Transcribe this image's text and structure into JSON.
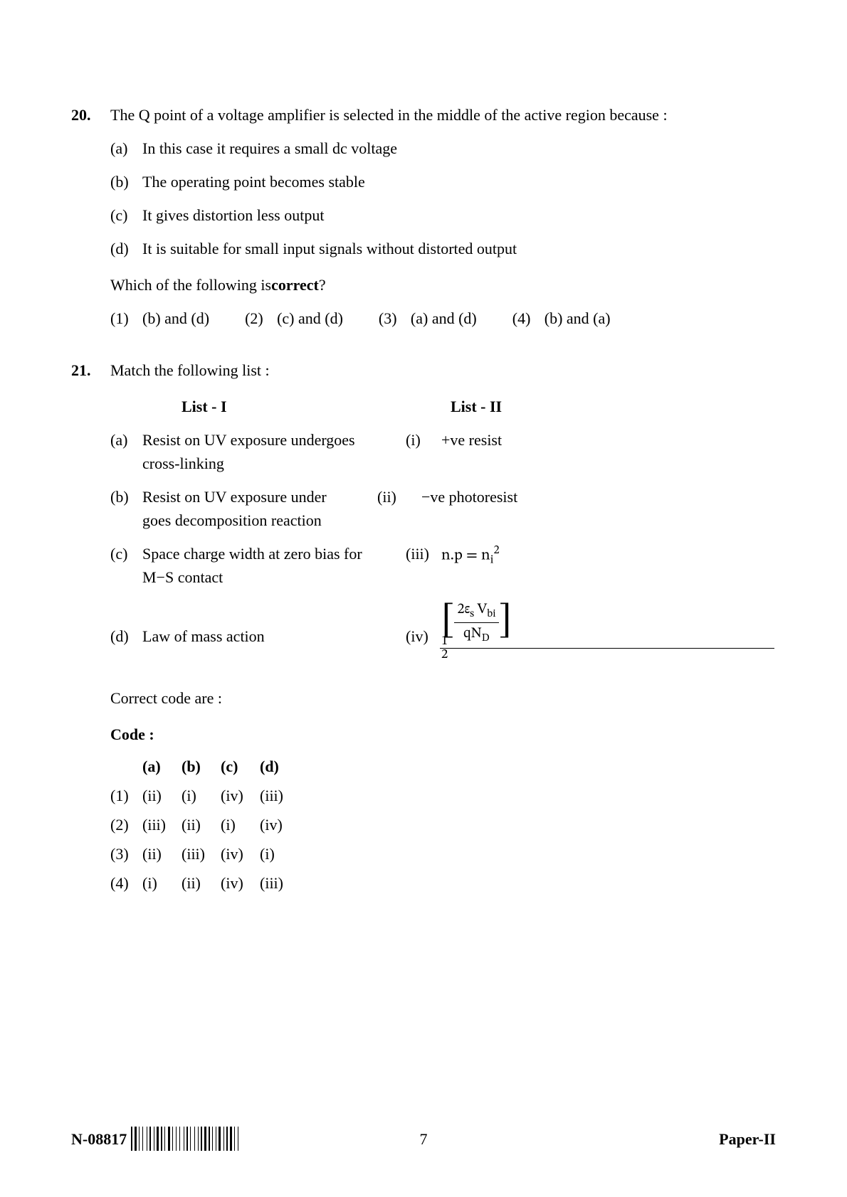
{
  "q20": {
    "number": "20.",
    "stem": "The Q point of a voltage amplifier is selected in the middle of the active region because :",
    "options": [
      {
        "label": "(a)",
        "text": "In this case it requires a small dc voltage"
      },
      {
        "label": "(b)",
        "text": "The operating point becomes stable"
      },
      {
        "label": "(c)",
        "text": "It gives distortion less output"
      },
      {
        "label": "(d)",
        "text": "It is suitable for small input signals without distorted output"
      }
    ],
    "prompt_prefix": "Which of the following is ",
    "prompt_bold": "correct",
    "prompt_suffix": " ?",
    "choices": [
      {
        "label": "(1)",
        "text": "(b) and (d)"
      },
      {
        "label": "(2)",
        "text": "(c) and (d)"
      },
      {
        "label": "(3)",
        "text": "(a) and (d)"
      },
      {
        "label": "(4)",
        "text": "(b) and (a)"
      }
    ]
  },
  "q21": {
    "number": "21.",
    "stem": "Match the following list :",
    "list1_heading": "List - I",
    "list2_heading": "List - II",
    "rows": [
      {
        "l1_label": "(a)",
        "l1_text": "Resist on UV exposure undergoes cross-linking",
        "l2_label": "(i)",
        "l2_text": "+ve resist"
      },
      {
        "l1_label": "(b)",
        "l1_text": "Resist on UV exposure under goes decomposition reaction",
        "l2_label": "(ii)",
        "l2_text": "−ve photoresist"
      },
      {
        "l1_label": "(c)",
        "l1_text": "Space charge width at zero bias for M−S contact",
        "l2_label": "(iii)",
        "l2_formula_prefix": "n.p = n",
        "l2_formula_sub": "i",
        "l2_formula_sup": "2"
      },
      {
        "l1_label": "(d)",
        "l1_text": "Law of mass action",
        "l2_label": "(iv)",
        "l2_frac_num_a": "2ε",
        "l2_frac_num_sub_a": "s",
        "l2_frac_num_b": " V",
        "l2_frac_num_sub_b": "bi",
        "l2_frac_den_a": "qN",
        "l2_frac_den_sub": "D",
        "l2_exp_num": "1",
        "l2_exp_den": "2"
      }
    ],
    "correct_prompt": "Correct code are :",
    "code_label": "Code :",
    "code_headers": [
      "(a)",
      "(b)",
      "(c)",
      "(d)"
    ],
    "code_rows": [
      {
        "label": "(1)",
        "cells": [
          "(ii)",
          "(i)",
          "(iv)",
          "(iii)"
        ]
      },
      {
        "label": "(2)",
        "cells": [
          "(iii)",
          "(ii)",
          "(i)",
          "(iv)"
        ]
      },
      {
        "label": "(3)",
        "cells": [
          "(ii)",
          "(iii)",
          "(iv)",
          "(i)"
        ]
      },
      {
        "label": "(4)",
        "cells": [
          "(i)",
          "(ii)",
          "(iv)",
          "(iii)"
        ]
      }
    ]
  },
  "footer": {
    "code": "N-08817",
    "page_number": "7",
    "paper": "Paper-II"
  },
  "barcode_widths": [
    2,
    1,
    3,
    1,
    1,
    2,
    1,
    3,
    1,
    1,
    2,
    2,
    1,
    1,
    3,
    1,
    2,
    1,
    1,
    2,
    3,
    1,
    1,
    2,
    1,
    2,
    1,
    3,
    1,
    1,
    2,
    1,
    1,
    3,
    1,
    2,
    1,
    1,
    2,
    1,
    3,
    1,
    2,
    1,
    1,
    2,
    1,
    1,
    3,
    2,
    1,
    1,
    2,
    1,
    3,
    1,
    1,
    2,
    1,
    2
  ],
  "colors": {
    "text": "#000000",
    "background": "#ffffff"
  }
}
